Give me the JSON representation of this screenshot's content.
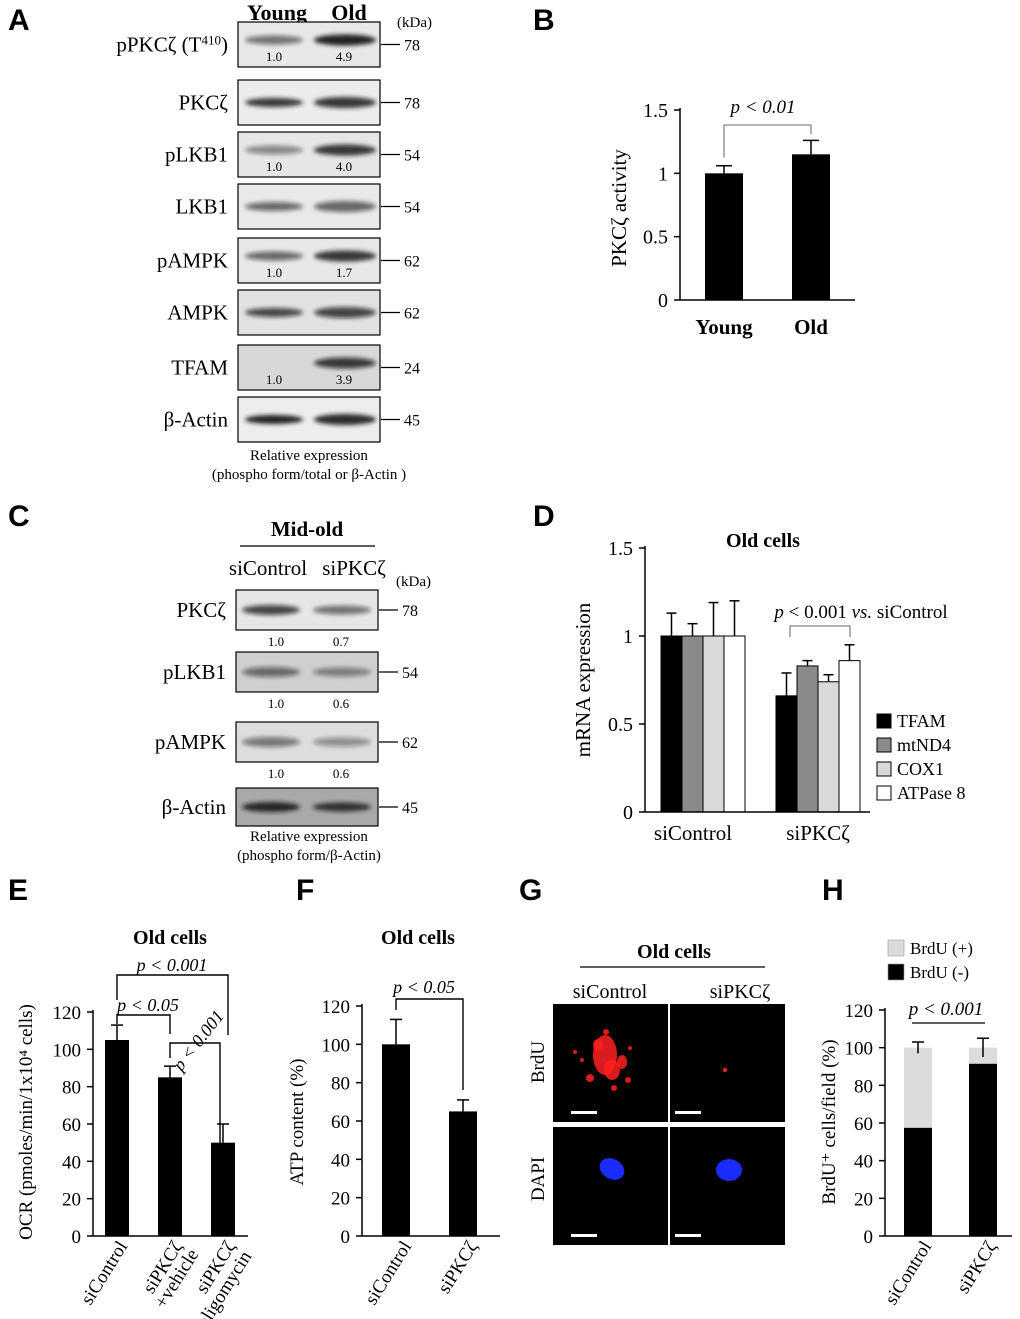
{
  "panels": {
    "A": "A",
    "B": "B",
    "C": "C",
    "D": "D",
    "E": "E",
    "F": "F",
    "G": "G",
    "H": "H"
  },
  "blot_A": {
    "header": [
      "Young",
      "Old"
    ],
    "unit": "(kDa)",
    "rows": [
      {
        "label": "pPKCζ (T",
        "sup": "410",
        "label_end": ")",
        "kda": "78",
        "quant": [
          "1.0",
          "4.9"
        ]
      },
      {
        "label": "PKCζ",
        "kda": "78",
        "quant": []
      },
      {
        "label": "pLKB1",
        "kda": "54",
        "quant": [
          "1.0",
          "4.0"
        ]
      },
      {
        "label": "LKB1",
        "kda": "54",
        "quant": []
      },
      {
        "label": "pAMPK",
        "kda": "62",
        "quant": [
          "1.0",
          "1.7"
        ]
      },
      {
        "label": "AMPK",
        "kda": "62",
        "quant": []
      },
      {
        "label": "TFAM",
        "kda": "24",
        "quant": [
          "1.0",
          "3.9"
        ]
      },
      {
        "label": "β-Actin",
        "kda": "45",
        "quant": []
      }
    ],
    "caption1": "Relative expression",
    "caption2": "(phospho form/total or β-Actin )"
  },
  "blot_C": {
    "title": "Mid-old",
    "header": [
      "siControl",
      "siPKCζ"
    ],
    "unit": "(kDa)",
    "rows": [
      {
        "label": "PKCζ",
        "kda": "78",
        "quant": [
          "1.0",
          "0.7"
        ]
      },
      {
        "label": "pLKB1",
        "kda": "54",
        "quant": [
          "1.0",
          "0.6"
        ]
      },
      {
        "label": "pAMPK",
        "kda": "62",
        "quant": [
          "1.0",
          "0.6"
        ]
      },
      {
        "label": "β-Actin",
        "kda": "45",
        "quant": []
      }
    ],
    "caption1": "Relative expression",
    "caption2": "(phospho form/β-Actin)"
  },
  "panel_G": {
    "title": "Old cells",
    "cols": [
      "siControl",
      "siPKCζ"
    ],
    "rows": [
      "BrdU",
      "DAPI"
    ]
  },
  "chart_data": [
    {
      "panel": "B",
      "type": "bar",
      "categories": [
        "Young",
        "Old"
      ],
      "values": [
        1.0,
        1.15
      ],
      "errors": [
        0.06,
        0.11
      ],
      "ylabel": "PKCζ activity",
      "ylim": [
        0,
        1.5
      ],
      "yticks": [
        "0",
        "0.5",
        "1",
        "1.5"
      ],
      "annotation": "p < 0.01",
      "bar_color": "#000000"
    },
    {
      "panel": "D",
      "type": "bar",
      "title": "Old  cells",
      "categories": [
        "siControl",
        "siPKCζ"
      ],
      "series": [
        {
          "name": "TFAM",
          "values": [
            1.0,
            0.66
          ],
          "errors": [
            0.13,
            0.13
          ],
          "color": "#000000"
        },
        {
          "name": "mtND4",
          "values": [
            1.0,
            0.83
          ],
          "errors": [
            0.07,
            0.03
          ],
          "color": "#8a8a8a"
        },
        {
          "name": "COX1",
          "values": [
            1.0,
            0.74
          ],
          "errors": [
            0.19,
            0.04
          ],
          "color": "#d9d9d9"
        },
        {
          "name": "ATPase 8",
          "values": [
            1.0,
            0.86
          ],
          "errors": [
            0.2,
            0.09
          ],
          "color": "#ffffff"
        }
      ],
      "ylabel": "mRNA expression",
      "ylim": [
        0,
        1.5
      ],
      "yticks": [
        "0",
        "0.5",
        "1",
        "1.5"
      ],
      "annotation": "p < 0.001 vs. siControl",
      "legend": "right"
    },
    {
      "panel": "E",
      "type": "bar",
      "title": "Old cells",
      "categories": [
        "siControl",
        "siPKCζ +vehicle",
        "siPKCζ +oligomycin"
      ],
      "values": [
        105,
        85,
        50
      ],
      "errors": [
        8,
        6,
        10
      ],
      "ylabel": "OCR (pmoles/min/1x10⁴ cells)",
      "ylim": [
        0,
        120
      ],
      "yticks": [
        "0",
        "20",
        "40",
        "60",
        "80",
        "100",
        "120"
      ],
      "annotations": [
        "p < 0.05",
        "p < 0.001",
        "p < 0.001"
      ]
    },
    {
      "panel": "F",
      "type": "bar",
      "title": "Old cells",
      "categories": [
        "siControl",
        "siPKCζ"
      ],
      "values": [
        100,
        65
      ],
      "errors": [
        13,
        6
      ],
      "ylabel": "ATP content (%)",
      "ylim": [
        0,
        120
      ],
      "yticks": [
        "0",
        "20",
        "40",
        "60",
        "80",
        "100",
        "120"
      ],
      "annotation": "p < 0.05"
    },
    {
      "panel": "H",
      "type": "bar",
      "categories": [
        "siControl",
        "siPKCζ"
      ],
      "series": [
        {
          "name": "BrdU (-)",
          "values": [
            57.5,
            91.5
          ],
          "color": "#000000"
        },
        {
          "name": "BrdU (+)",
          "values": [
            42.5,
            8.5
          ],
          "color": "#dcdcdc"
        }
      ],
      "errors": [
        3,
        5
      ],
      "ylabel": "BrdU⁺ cells/field (%)",
      "ylim": [
        0,
        120
      ],
      "yticks": [
        "0",
        "20",
        "40",
        "60",
        "80",
        "100",
        "120"
      ],
      "annotation": "p < 0.001",
      "legend": "top-left"
    }
  ]
}
